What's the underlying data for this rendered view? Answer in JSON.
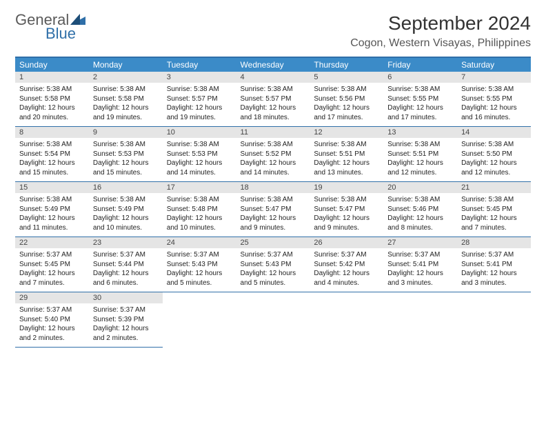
{
  "logo": {
    "text_general": "General",
    "text_blue": "Blue"
  },
  "title": "September 2024",
  "location": "Cogon, Western Visayas, Philippines",
  "colors": {
    "header_bg": "#3b8bc8",
    "header_text": "#ffffff",
    "border": "#2f6fa8",
    "daynum_bg": "#e5e5e5",
    "text": "#222222",
    "logo_gray": "#5a5a5a",
    "logo_blue": "#2f6fa8"
  },
  "weekdays": [
    "Sunday",
    "Monday",
    "Tuesday",
    "Wednesday",
    "Thursday",
    "Friday",
    "Saturday"
  ],
  "weeks": [
    [
      {
        "n": "1",
        "sr": "Sunrise: 5:38 AM",
        "ss": "Sunset: 5:58 PM",
        "d1": "Daylight: 12 hours",
        "d2": "and 20 minutes."
      },
      {
        "n": "2",
        "sr": "Sunrise: 5:38 AM",
        "ss": "Sunset: 5:58 PM",
        "d1": "Daylight: 12 hours",
        "d2": "and 19 minutes."
      },
      {
        "n": "3",
        "sr": "Sunrise: 5:38 AM",
        "ss": "Sunset: 5:57 PM",
        "d1": "Daylight: 12 hours",
        "d2": "and 19 minutes."
      },
      {
        "n": "4",
        "sr": "Sunrise: 5:38 AM",
        "ss": "Sunset: 5:57 PM",
        "d1": "Daylight: 12 hours",
        "d2": "and 18 minutes."
      },
      {
        "n": "5",
        "sr": "Sunrise: 5:38 AM",
        "ss": "Sunset: 5:56 PM",
        "d1": "Daylight: 12 hours",
        "d2": "and 17 minutes."
      },
      {
        "n": "6",
        "sr": "Sunrise: 5:38 AM",
        "ss": "Sunset: 5:55 PM",
        "d1": "Daylight: 12 hours",
        "d2": "and 17 minutes."
      },
      {
        "n": "7",
        "sr": "Sunrise: 5:38 AM",
        "ss": "Sunset: 5:55 PM",
        "d1": "Daylight: 12 hours",
        "d2": "and 16 minutes."
      }
    ],
    [
      {
        "n": "8",
        "sr": "Sunrise: 5:38 AM",
        "ss": "Sunset: 5:54 PM",
        "d1": "Daylight: 12 hours",
        "d2": "and 15 minutes."
      },
      {
        "n": "9",
        "sr": "Sunrise: 5:38 AM",
        "ss": "Sunset: 5:53 PM",
        "d1": "Daylight: 12 hours",
        "d2": "and 15 minutes."
      },
      {
        "n": "10",
        "sr": "Sunrise: 5:38 AM",
        "ss": "Sunset: 5:53 PM",
        "d1": "Daylight: 12 hours",
        "d2": "and 14 minutes."
      },
      {
        "n": "11",
        "sr": "Sunrise: 5:38 AM",
        "ss": "Sunset: 5:52 PM",
        "d1": "Daylight: 12 hours",
        "d2": "and 14 minutes."
      },
      {
        "n": "12",
        "sr": "Sunrise: 5:38 AM",
        "ss": "Sunset: 5:51 PM",
        "d1": "Daylight: 12 hours",
        "d2": "and 13 minutes."
      },
      {
        "n": "13",
        "sr": "Sunrise: 5:38 AM",
        "ss": "Sunset: 5:51 PM",
        "d1": "Daylight: 12 hours",
        "d2": "and 12 minutes."
      },
      {
        "n": "14",
        "sr": "Sunrise: 5:38 AM",
        "ss": "Sunset: 5:50 PM",
        "d1": "Daylight: 12 hours",
        "d2": "and 12 minutes."
      }
    ],
    [
      {
        "n": "15",
        "sr": "Sunrise: 5:38 AM",
        "ss": "Sunset: 5:49 PM",
        "d1": "Daylight: 12 hours",
        "d2": "and 11 minutes."
      },
      {
        "n": "16",
        "sr": "Sunrise: 5:38 AM",
        "ss": "Sunset: 5:49 PM",
        "d1": "Daylight: 12 hours",
        "d2": "and 10 minutes."
      },
      {
        "n": "17",
        "sr": "Sunrise: 5:38 AM",
        "ss": "Sunset: 5:48 PM",
        "d1": "Daylight: 12 hours",
        "d2": "and 10 minutes."
      },
      {
        "n": "18",
        "sr": "Sunrise: 5:38 AM",
        "ss": "Sunset: 5:47 PM",
        "d1": "Daylight: 12 hours",
        "d2": "and 9 minutes."
      },
      {
        "n": "19",
        "sr": "Sunrise: 5:38 AM",
        "ss": "Sunset: 5:47 PM",
        "d1": "Daylight: 12 hours",
        "d2": "and 9 minutes."
      },
      {
        "n": "20",
        "sr": "Sunrise: 5:38 AM",
        "ss": "Sunset: 5:46 PM",
        "d1": "Daylight: 12 hours",
        "d2": "and 8 minutes."
      },
      {
        "n": "21",
        "sr": "Sunrise: 5:38 AM",
        "ss": "Sunset: 5:45 PM",
        "d1": "Daylight: 12 hours",
        "d2": "and 7 minutes."
      }
    ],
    [
      {
        "n": "22",
        "sr": "Sunrise: 5:37 AM",
        "ss": "Sunset: 5:45 PM",
        "d1": "Daylight: 12 hours",
        "d2": "and 7 minutes."
      },
      {
        "n": "23",
        "sr": "Sunrise: 5:37 AM",
        "ss": "Sunset: 5:44 PM",
        "d1": "Daylight: 12 hours",
        "d2": "and 6 minutes."
      },
      {
        "n": "24",
        "sr": "Sunrise: 5:37 AM",
        "ss": "Sunset: 5:43 PM",
        "d1": "Daylight: 12 hours",
        "d2": "and 5 minutes."
      },
      {
        "n": "25",
        "sr": "Sunrise: 5:37 AM",
        "ss": "Sunset: 5:43 PM",
        "d1": "Daylight: 12 hours",
        "d2": "and 5 minutes."
      },
      {
        "n": "26",
        "sr": "Sunrise: 5:37 AM",
        "ss": "Sunset: 5:42 PM",
        "d1": "Daylight: 12 hours",
        "d2": "and 4 minutes."
      },
      {
        "n": "27",
        "sr": "Sunrise: 5:37 AM",
        "ss": "Sunset: 5:41 PM",
        "d1": "Daylight: 12 hours",
        "d2": "and 3 minutes."
      },
      {
        "n": "28",
        "sr": "Sunrise: 5:37 AM",
        "ss": "Sunset: 5:41 PM",
        "d1": "Daylight: 12 hours",
        "d2": "and 3 minutes."
      }
    ],
    [
      {
        "n": "29",
        "sr": "Sunrise: 5:37 AM",
        "ss": "Sunset: 5:40 PM",
        "d1": "Daylight: 12 hours",
        "d2": "and 2 minutes."
      },
      {
        "n": "30",
        "sr": "Sunrise: 5:37 AM",
        "ss": "Sunset: 5:39 PM",
        "d1": "Daylight: 12 hours",
        "d2": "and 2 minutes."
      },
      null,
      null,
      null,
      null,
      null
    ]
  ]
}
